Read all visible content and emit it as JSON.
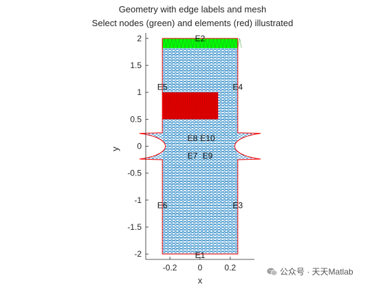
{
  "chart_data": {
    "type": "mesh",
    "title": "Geometry with edge labels and mesh",
    "subtitle": "Select nodes (green) and elements (red) illustrated",
    "xlabel": "x",
    "ylabel": "y",
    "xlim": [
      -0.36,
      0.36
    ],
    "ylim": [
      -2.1,
      2.1
    ],
    "xticks": [
      {
        "value": -0.2,
        "label": "-0.2"
      },
      {
        "value": 0,
        "label": "0"
      },
      {
        "value": 0.2,
        "label": "0.2"
      }
    ],
    "yticks": [
      {
        "value": 2,
        "label": "2"
      },
      {
        "value": 1.5,
        "label": "1.5"
      },
      {
        "value": 1,
        "label": "1"
      },
      {
        "value": 0.5,
        "label": "0.5"
      },
      {
        "value": 0,
        "label": "0"
      },
      {
        "value": -0.5,
        "label": "-0.5"
      },
      {
        "value": -1,
        "label": "-1"
      },
      {
        "value": -1.5,
        "label": "-1.5"
      },
      {
        "value": -2,
        "label": "-2"
      }
    ],
    "geometry": {
      "x_range": [
        -0.25,
        0.25
      ],
      "y_range": [
        -2,
        2
      ],
      "neck": {
        "y_top": 0.25,
        "y_bottom": -0.25,
        "min_half_width": 0.02
      }
    },
    "edge_labels": [
      {
        "id": "E1",
        "x": 0,
        "y": -2.0
      },
      {
        "id": "E2",
        "x": 0,
        "y": 2.0
      },
      {
        "id": "E3",
        "x": 0.25,
        "y": -1.1
      },
      {
        "id": "E4",
        "x": 0.25,
        "y": 1.1
      },
      {
        "id": "E5",
        "x": -0.25,
        "y": 1.1
      },
      {
        "id": "E6",
        "x": -0.25,
        "y": -1.1
      },
      {
        "id": "E7",
        "x": -0.05,
        "y": -0.18
      },
      {
        "id": "E8",
        "x": -0.05,
        "y": 0.15
      },
      {
        "id": "E9",
        "x": 0.05,
        "y": -0.18
      },
      {
        "id": "E10",
        "x": 0.05,
        "y": 0.15
      }
    ],
    "selected_nodes": {
      "color": "#00ff00",
      "x_range": [
        -0.25,
        0.25
      ],
      "y_range": [
        1.82,
        2.0
      ]
    },
    "selected_elements": {
      "color": "#ff0000",
      "x_range": [
        -0.25,
        0.12
      ],
      "y_range": [
        0.5,
        1.0
      ]
    },
    "colors": {
      "mesh": "#0072bd",
      "edge": "#ff0000",
      "nodes": "#00ff00",
      "elements": "#e00000"
    }
  },
  "watermark": {
    "text": "公众号 · 天天Matlab",
    "icon": "wechat-icon"
  }
}
